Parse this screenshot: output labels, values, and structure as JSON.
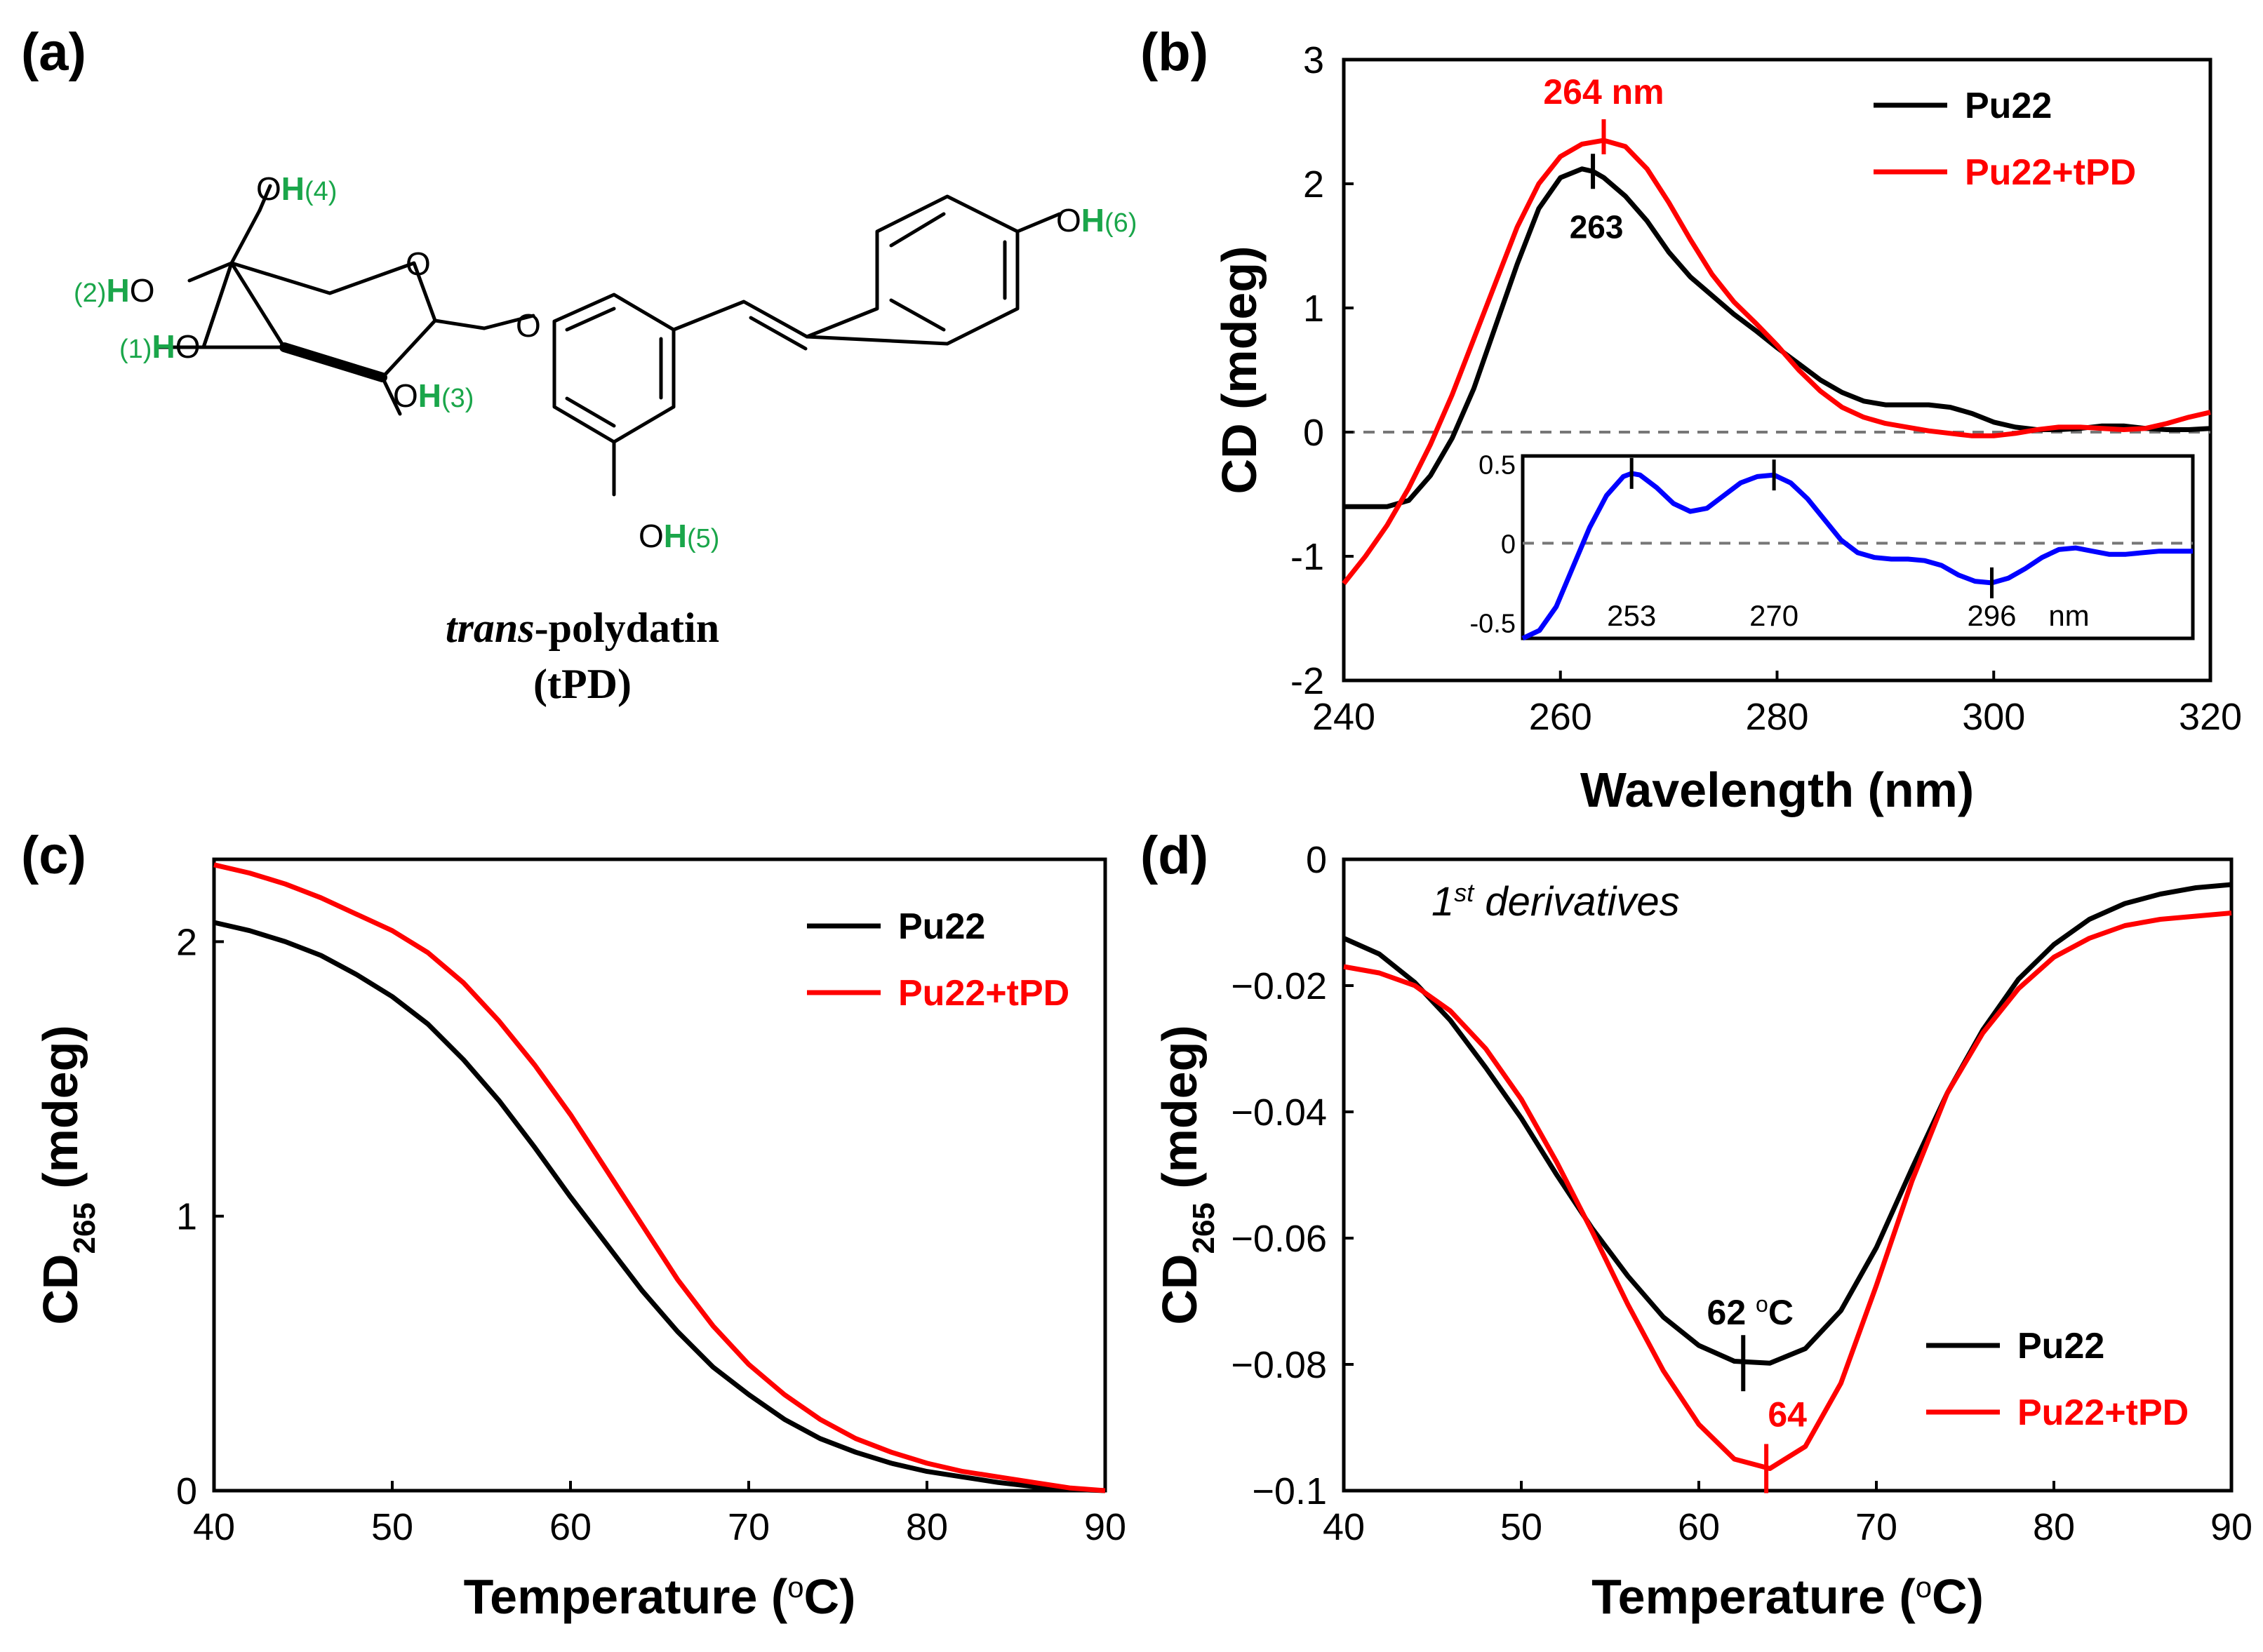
{
  "panels": {
    "a": {
      "label": "(a)",
      "compound_name_italic": "trans",
      "compound_name_rest": "-polydatin",
      "compound_abbrev": "(tPD)",
      "atom_labels": [
        {
          "pre": "O",
          "h": "H",
          "num": "(4)"
        },
        {
          "pre": "(2)",
          "h": "H",
          "num": "O"
        },
        {
          "pre": "(1)",
          "h": "H",
          "num": "O"
        },
        {
          "pre": "O",
          "h": "H",
          "num": "(3)"
        },
        {
          "pre": "O",
          "h": "H",
          "num": "(5)"
        },
        {
          "pre": "O",
          "h": "H",
          "num": "(6)"
        },
        {
          "pre": "O",
          "h": "",
          "num": ""
        },
        {
          "pre": "O",
          "h": "",
          "num": ""
        }
      ]
    },
    "b": {
      "label": "(b)"
    },
    "c": {
      "label": "(c)"
    },
    "d": {
      "label": "(d)"
    }
  },
  "colors": {
    "pu22": "#000000",
    "pu22_tpd": "#ff0000",
    "inset": "#0000ff",
    "green": "#1aa64a"
  },
  "chart_data": [
    {
      "id": "b",
      "type": "line",
      "xlabel": "Wavelength (nm)",
      "ylabel": "CD (mdeg)",
      "xlim": [
        240,
        320
      ],
      "ylim": [
        -2,
        3
      ],
      "xticks": [
        240,
        260,
        280,
        300,
        320
      ],
      "yticks": [
        -2,
        -1,
        0,
        1,
        2,
        3
      ],
      "legend": [
        "Pu22",
        "Pu22+tPD"
      ],
      "legend_position": "top-right",
      "zero_line": true,
      "annotations": [
        {
          "text": "264 nm",
          "x": 264,
          "y": 2.35,
          "color": "red"
        },
        {
          "text": "263",
          "x": 263,
          "y": 2.1,
          "color": "black"
        }
      ],
      "series": [
        {
          "name": "Pu22",
          "x": [
            240,
            242,
            244,
            246,
            248,
            250,
            252,
            254,
            256,
            258,
            260,
            262,
            263,
            264,
            266,
            268,
            270,
            272,
            274,
            276,
            278,
            280,
            282,
            284,
            286,
            288,
            290,
            292,
            294,
            296,
            298,
            300,
            302,
            304,
            306,
            308,
            310,
            312,
            314,
            316,
            318,
            320
          ],
          "y": [
            -0.6,
            -0.6,
            -0.6,
            -0.55,
            -0.35,
            -0.05,
            0.35,
            0.85,
            1.35,
            1.8,
            2.05,
            2.12,
            2.1,
            2.05,
            1.9,
            1.7,
            1.45,
            1.25,
            1.1,
            0.95,
            0.82,
            0.68,
            0.55,
            0.42,
            0.32,
            0.25,
            0.22,
            0.22,
            0.22,
            0.2,
            0.15,
            0.08,
            0.04,
            0.02,
            0.02,
            0.03,
            0.05,
            0.05,
            0.03,
            0.02,
            0.02,
            0.03
          ]
        },
        {
          "name": "Pu22+tPD",
          "x": [
            240,
            242,
            244,
            246,
            248,
            250,
            252,
            254,
            256,
            258,
            260,
            262,
            264,
            266,
            268,
            270,
            272,
            274,
            276,
            278,
            280,
            282,
            284,
            286,
            288,
            290,
            292,
            294,
            296,
            298,
            300,
            302,
            304,
            306,
            308,
            310,
            312,
            314,
            316,
            318,
            320
          ],
          "y": [
            -1.22,
            -1.0,
            -0.75,
            -0.45,
            -0.1,
            0.3,
            0.75,
            1.2,
            1.65,
            2.0,
            2.22,
            2.32,
            2.35,
            2.3,
            2.12,
            1.85,
            1.55,
            1.27,
            1.05,
            0.88,
            0.7,
            0.5,
            0.33,
            0.2,
            0.12,
            0.07,
            0.04,
            0.01,
            -0.01,
            -0.03,
            -0.03,
            -0.01,
            0.02,
            0.04,
            0.04,
            0.03,
            0.02,
            0.03,
            0.07,
            0.12,
            0.16
          ]
        }
      ],
      "inset": {
        "xlim": [
          240,
          320
        ],
        "ylim": [
          -0.6,
          0.55
        ],
        "yticks": [
          -0.5,
          0,
          0.5
        ],
        "ytick_labels": [
          "-0.5",
          "0",
          "0.5"
        ],
        "peak_labels": [
          "253",
          "270",
          "296"
        ],
        "unit": "nm",
        "series": {
          "name": "difference",
          "x": [
            240,
            242,
            244,
            246,
            248,
            250,
            252,
            253,
            254,
            256,
            258,
            260,
            262,
            264,
            266,
            268,
            270,
            272,
            274,
            276,
            278,
            280,
            282,
            284,
            286,
            288,
            290,
            292,
            294,
            296,
            298,
            300,
            302,
            304,
            306,
            308,
            310,
            312,
            314,
            316,
            318,
            320
          ],
          "y": [
            -0.6,
            -0.55,
            -0.4,
            -0.15,
            0.1,
            0.3,
            0.42,
            0.44,
            0.43,
            0.35,
            0.25,
            0.2,
            0.22,
            0.3,
            0.38,
            0.42,
            0.43,
            0.38,
            0.28,
            0.15,
            0.02,
            -0.06,
            -0.09,
            -0.1,
            -0.1,
            -0.11,
            -0.14,
            -0.2,
            -0.24,
            -0.25,
            -0.22,
            -0.16,
            -0.09,
            -0.04,
            -0.03,
            -0.05,
            -0.07,
            -0.07,
            -0.06,
            -0.05,
            -0.05,
            -0.05
          ]
        }
      }
    },
    {
      "id": "c",
      "type": "line",
      "xlabel": "Temperature (°C)",
      "ylabel": "CD265 (mdeg)",
      "ylabel_main": "CD",
      "ylabel_sub": "265",
      "ylabel_tail": " (mdeg)",
      "xlabel_main": "Temperature (",
      "xlabel_sup": "o",
      "xlabel_tail": "C)",
      "xlim": [
        40,
        90
      ],
      "ylim": [
        0,
        2.3
      ],
      "xticks": [
        40,
        50,
        60,
        70,
        80,
        90
      ],
      "yticks": [
        0,
        1,
        2
      ],
      "legend": [
        "Pu22",
        "Pu22+tPD"
      ],
      "legend_position": "top-right",
      "series": [
        {
          "name": "Pu22",
          "x": [
            40,
            42,
            44,
            46,
            48,
            50,
            52,
            54,
            56,
            58,
            60,
            62,
            64,
            66,
            68,
            70,
            72,
            74,
            76,
            78,
            80,
            82,
            84,
            86,
            88,
            90
          ],
          "y": [
            2.07,
            2.04,
            2.0,
            1.95,
            1.88,
            1.8,
            1.7,
            1.57,
            1.42,
            1.25,
            1.07,
            0.9,
            0.73,
            0.58,
            0.45,
            0.35,
            0.26,
            0.19,
            0.14,
            0.1,
            0.07,
            0.05,
            0.03,
            0.015,
            0.005,
            0.0
          ]
        },
        {
          "name": "Pu22+tPD",
          "x": [
            40,
            42,
            44,
            46,
            48,
            50,
            52,
            54,
            56,
            58,
            60,
            62,
            64,
            66,
            68,
            70,
            72,
            74,
            76,
            78,
            80,
            82,
            84,
            86,
            88,
            90
          ],
          "y": [
            2.28,
            2.25,
            2.21,
            2.16,
            2.1,
            2.04,
            1.96,
            1.85,
            1.71,
            1.55,
            1.37,
            1.17,
            0.97,
            0.77,
            0.6,
            0.46,
            0.35,
            0.26,
            0.19,
            0.14,
            0.1,
            0.07,
            0.05,
            0.03,
            0.01,
            0.0
          ]
        }
      ]
    },
    {
      "id": "d",
      "type": "line",
      "title": "1st derivatives",
      "title_main": "1",
      "title_sup": "st",
      "title_tail": " derivatives",
      "xlabel": "Temperature (°C)",
      "ylabel": "CD265 (mdeg)",
      "ylabel_main": "CD",
      "ylabel_sub": "265",
      "ylabel_tail": " (mdeg)",
      "xlabel_main": "Temperature (",
      "xlabel_sup": "o",
      "xlabel_tail": "C)",
      "xlim": [
        40,
        90
      ],
      "ylim": [
        -0.1,
        0
      ],
      "xticks": [
        40,
        50,
        60,
        70,
        80,
        90
      ],
      "yticks": [
        -0.1,
        -0.08,
        -0.06,
        -0.04,
        -0.02,
        0
      ],
      "ytick_labels": [
        "−0.1",
        "−0.08",
        "−0.06",
        "−0.04",
        "−0.02",
        "0"
      ],
      "legend": [
        "Pu22",
        "Pu22+tPD"
      ],
      "legend_position": "bottom-right",
      "annotations": [
        {
          "text_main": "62 ",
          "text_sup": "o",
          "text_tail": "C",
          "x": 62,
          "y": -0.0805,
          "color": "black"
        },
        {
          "text_main": "64",
          "text_sup": "",
          "text_tail": "",
          "x": 64,
          "y": -0.097,
          "color": "red"
        }
      ],
      "series": [
        {
          "name": "Pu22",
          "x": [
            40,
            42,
            44,
            46,
            48,
            50,
            52,
            54,
            56,
            58,
            60,
            62,
            64,
            66,
            68,
            70,
            72,
            74,
            76,
            78,
            80,
            82,
            84,
            86,
            88,
            90
          ],
          "y": [
            -0.0125,
            -0.015,
            -0.0195,
            -0.0255,
            -0.033,
            -0.041,
            -0.05,
            -0.0585,
            -0.066,
            -0.0725,
            -0.077,
            -0.0795,
            -0.0798,
            -0.0775,
            -0.0715,
            -0.0615,
            -0.049,
            -0.037,
            -0.027,
            -0.019,
            -0.0135,
            -0.0095,
            -0.007,
            -0.0055,
            -0.0045,
            -0.004
          ]
        },
        {
          "name": "Pu22+tPD",
          "x": [
            40,
            42,
            44,
            46,
            48,
            50,
            52,
            54,
            56,
            58,
            60,
            62,
            64,
            66,
            68,
            70,
            72,
            74,
            76,
            78,
            80,
            82,
            84,
            86,
            88,
            90
          ],
          "y": [
            -0.017,
            -0.018,
            -0.02,
            -0.024,
            -0.03,
            -0.038,
            -0.048,
            -0.059,
            -0.0705,
            -0.081,
            -0.0895,
            -0.095,
            -0.0965,
            -0.093,
            -0.083,
            -0.0675,
            -0.051,
            -0.037,
            -0.0275,
            -0.0205,
            -0.0155,
            -0.0125,
            -0.0105,
            -0.0095,
            -0.009,
            -0.0085
          ]
        }
      ]
    }
  ]
}
